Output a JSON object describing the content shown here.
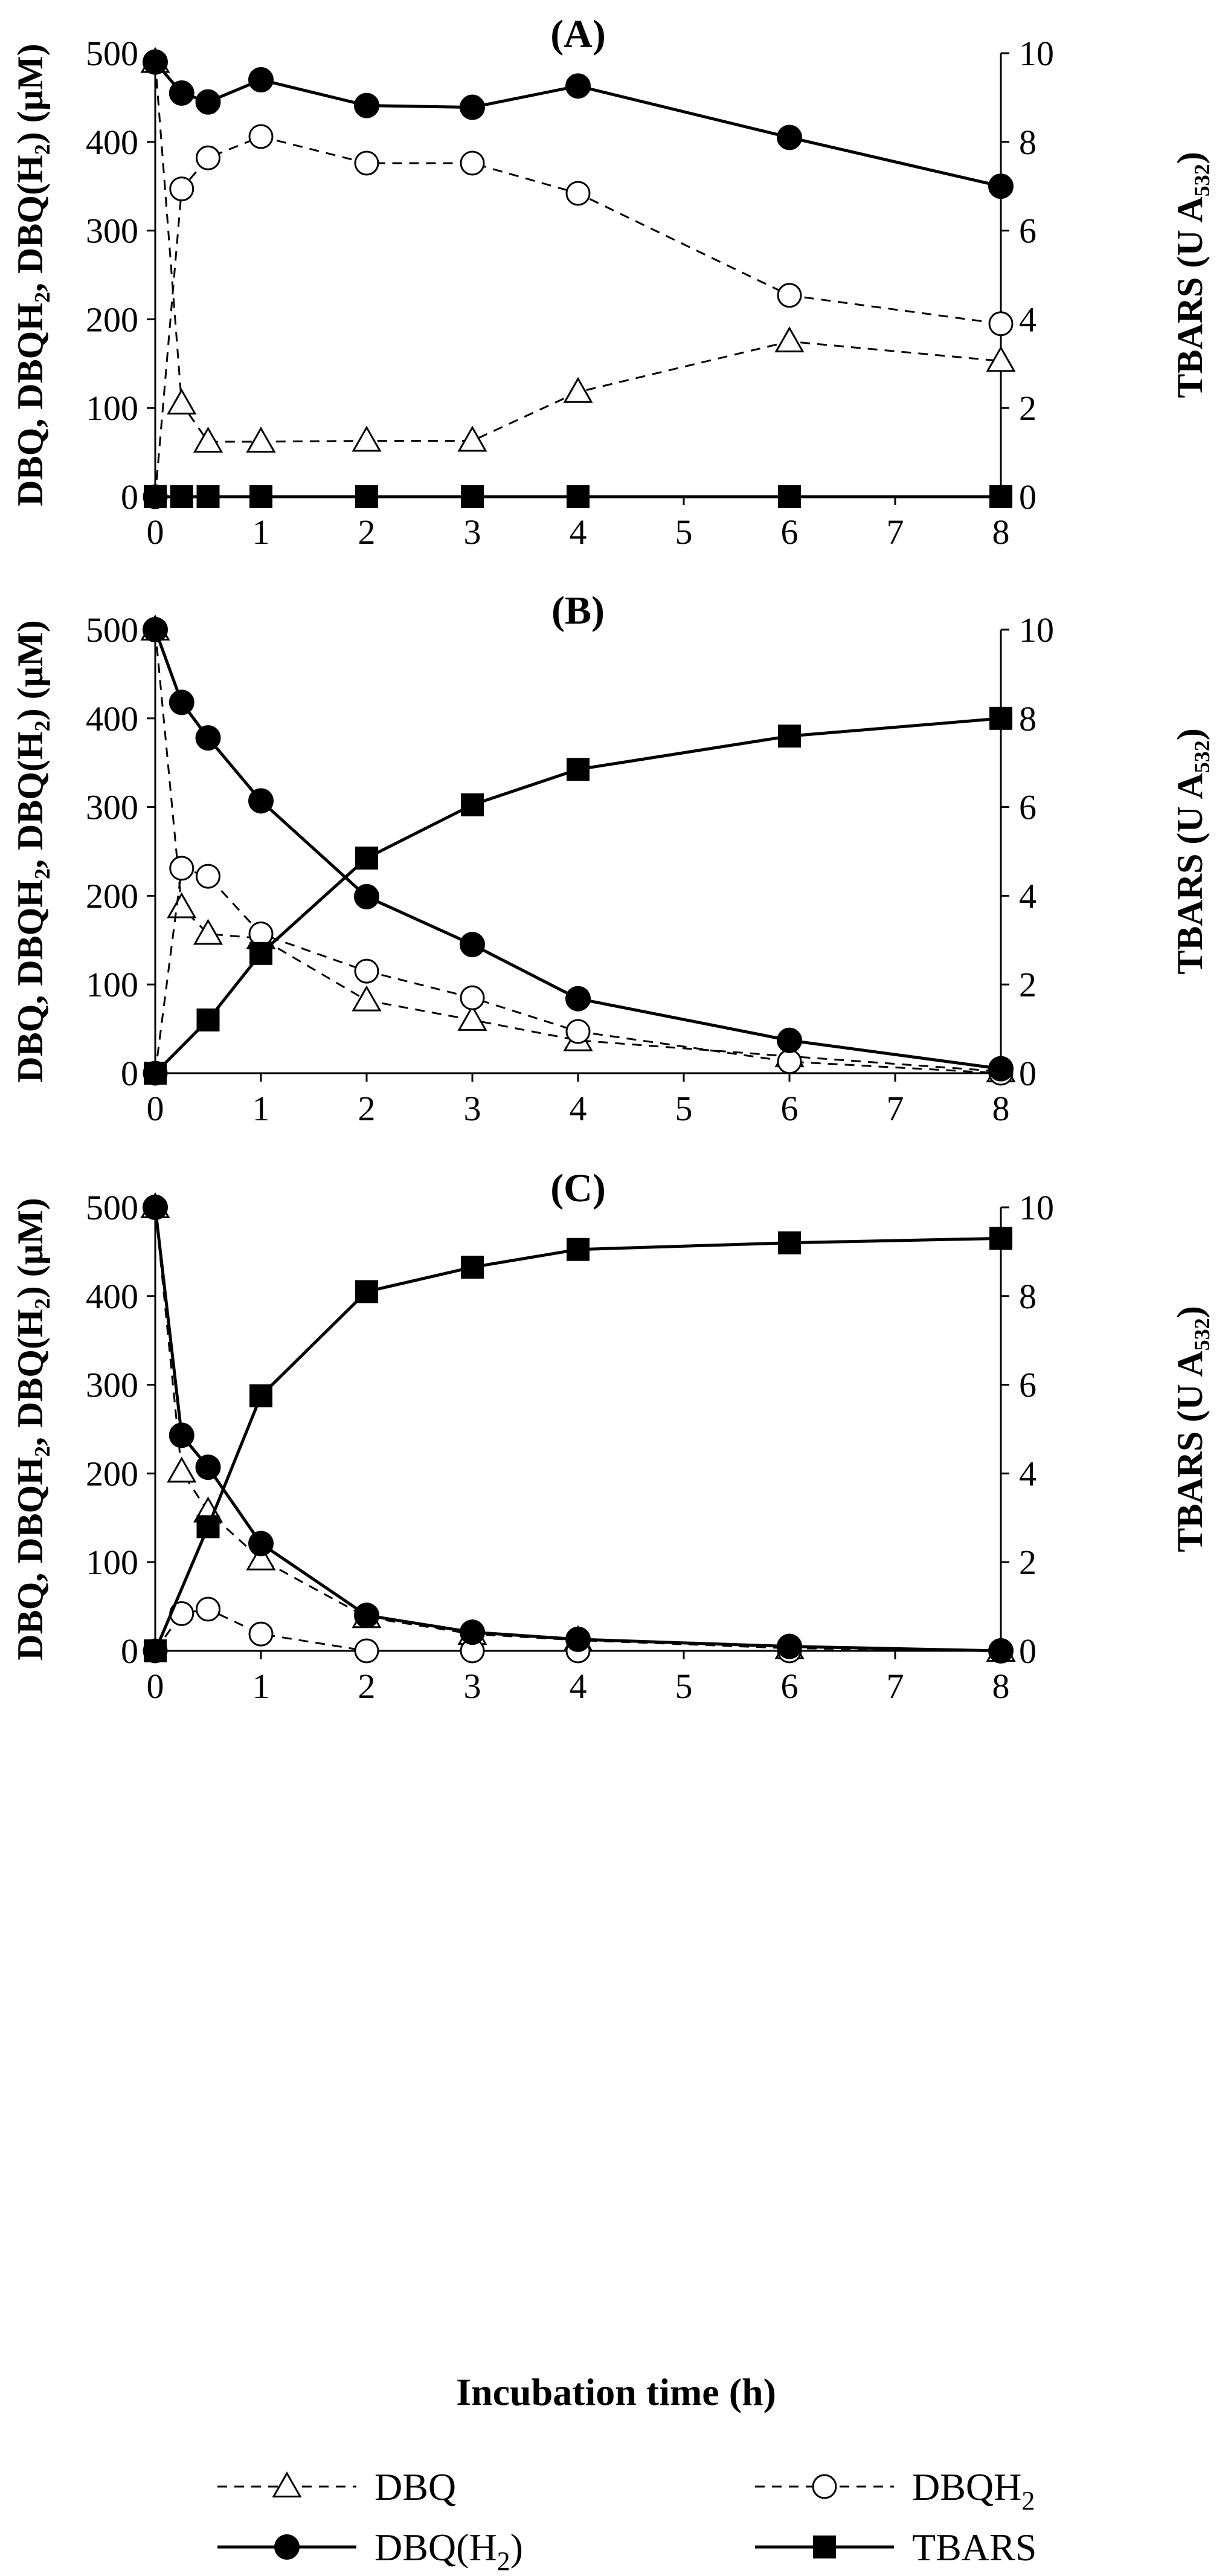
{
  "chart_data": {
    "type": "line",
    "xlabel": "Incubation time (h)",
    "ylabel_left": "DBQ, DBQH₂, DBQ(H₂) (µM)",
    "ylabel_right": "TBARS (U A₅₃₂)",
    "xlim": [
      0,
      8
    ],
    "ylim_left": [
      0,
      500
    ],
    "ylim_right": [
      0,
      10
    ],
    "x_ticks": [
      "0",
      "1",
      "2",
      "3",
      "4",
      "5",
      "6",
      "7",
      "8"
    ],
    "y_left_ticks": [
      "0",
      "100",
      "200",
      "300",
      "400",
      "500"
    ],
    "y_right_ticks": [
      "0",
      "2",
      "4",
      "6",
      "8",
      "10"
    ],
    "x": [
      0,
      0.25,
      0.5,
      1,
      2,
      3,
      4,
      6,
      8
    ],
    "legend": [
      {
        "name": "DBQ",
        "sub": "",
        "style": "dashed",
        "marker": "open-triangle"
      },
      {
        "name": "DBQH",
        "sub": "2",
        "style": "dashed",
        "marker": "open-circle"
      },
      {
        "name": "DBQ(H",
        "sub": "2",
        "suffix": ")",
        "style": "solid",
        "marker": "filled-circle"
      },
      {
        "name": "TBARS",
        "sub": "",
        "style": "solid",
        "marker": "filled-square"
      }
    ],
    "panels": [
      {
        "title": "(A)",
        "series": [
          {
            "name": "DBQ",
            "axis": "left",
            "values": [
              490,
              105,
              62,
              62,
              63,
              63,
              118,
              175,
              153
            ]
          },
          {
            "name": "DBQH2",
            "axis": "left",
            "values": [
              0,
              347,
              382,
              406,
              376,
              376,
              342,
              227,
              195
            ]
          },
          {
            "name": "DBQ(H2)",
            "axis": "left",
            "values": [
              490,
              455,
              445,
              470,
              441,
              439,
              463,
              405,
              350
            ]
          },
          {
            "name": "TBARS",
            "axis": "right",
            "values": [
              0,
              0,
              0,
              0,
              0,
              0,
              0,
              0,
              0
            ]
          }
        ]
      },
      {
        "title": "(B)",
        "series": [
          {
            "name": "DBQ",
            "axis": "left",
            "values": [
              500,
              187,
              157,
              152,
              82,
              60,
              37,
              19,
              2
            ]
          },
          {
            "name": "DBQH2",
            "axis": "left",
            "values": [
              0,
              231,
              222,
              157,
              115,
              85,
              47,
              13,
              0
            ]
          },
          {
            "name": "DBQ(H2)",
            "axis": "left",
            "values": [
              500,
              418,
              378,
              307,
              199,
              145,
              84,
              37,
              5
            ]
          },
          {
            "name": "TBARS",
            "axis": "right",
            "values": [
              0,
              null,
              1.2,
              2.7,
              4.85,
              6.05,
              6.85,
              7.6,
              8.0
            ]
          }
        ]
      },
      {
        "title": "(C)",
        "series": [
          {
            "name": "DBQ",
            "axis": "left",
            "values": [
              500,
              202,
              157,
              103,
              38,
              19,
              12,
              3,
              0
            ]
          },
          {
            "name": "DBQH2",
            "axis": "left",
            "values": [
              0,
              42,
              47,
              19,
              0,
              0,
              0,
              0,
              0
            ]
          },
          {
            "name": "DBQ(H2)",
            "axis": "left",
            "values": [
              500,
              243,
              207,
              121,
              40,
              21,
              13,
              5,
              0
            ]
          },
          {
            "name": "TBARS",
            "axis": "right",
            "values": [
              0,
              null,
              2.8,
              5.75,
              8.1,
              8.65,
              9.05,
              9.2,
              9.3
            ]
          }
        ]
      }
    ]
  }
}
